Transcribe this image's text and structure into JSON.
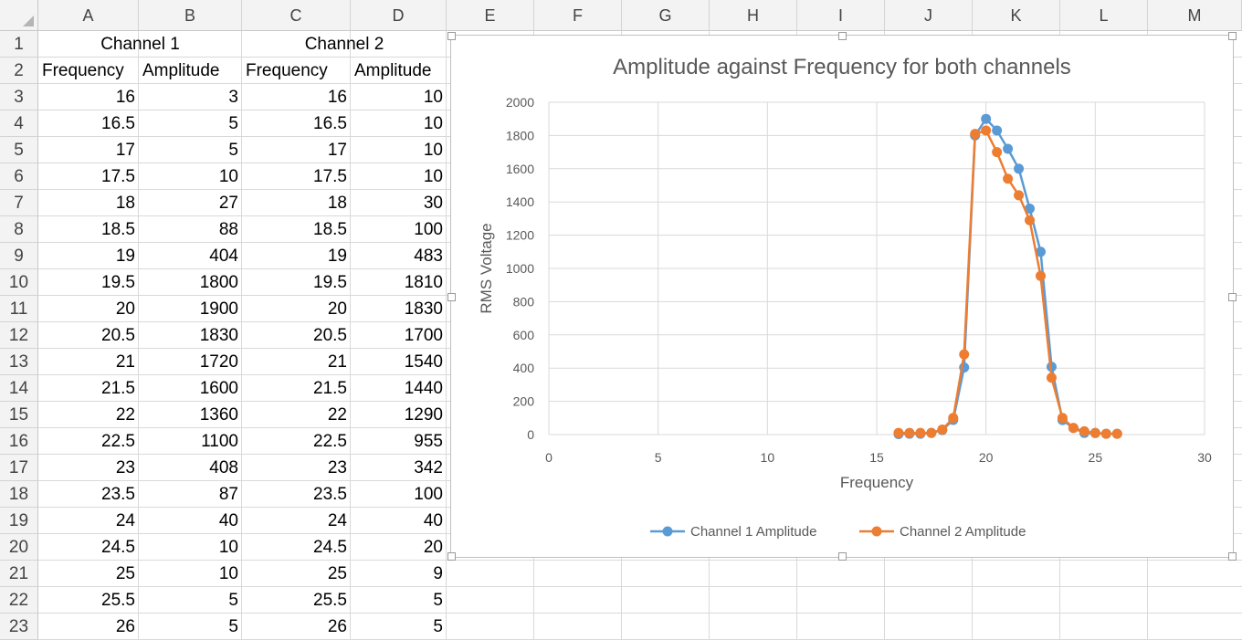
{
  "columns": [
    "A",
    "B",
    "C",
    "D",
    "E",
    "F",
    "G",
    "H",
    "I",
    "J",
    "K",
    "L",
    "M"
  ],
  "row_numbers": [
    "1",
    "2",
    "3",
    "4",
    "5",
    "6",
    "7",
    "8",
    "9",
    "10",
    "11",
    "12",
    "13",
    "14",
    "15",
    "16",
    "17",
    "18",
    "19",
    "20",
    "21",
    "22",
    "23"
  ],
  "headers": {
    "channel1": "Channel 1",
    "channel2": "Channel 2",
    "freq1": "Frequency",
    "amp1": "Amplitude",
    "freq2": "Frequency",
    "amp2": "Amplitude"
  },
  "rows": [
    [
      "16",
      "3",
      "16",
      "10"
    ],
    [
      "16.5",
      "5",
      "16.5",
      "10"
    ],
    [
      "17",
      "5",
      "17",
      "10"
    ],
    [
      "17.5",
      "10",
      "17.5",
      "10"
    ],
    [
      "18",
      "27",
      "18",
      "30"
    ],
    [
      "18.5",
      "88",
      "18.5",
      "100"
    ],
    [
      "19",
      "404",
      "19",
      "483"
    ],
    [
      "19.5",
      "1800",
      "19.5",
      "1810"
    ],
    [
      "20",
      "1900",
      "20",
      "1830"
    ],
    [
      "20.5",
      "1830",
      "20.5",
      "1700"
    ],
    [
      "21",
      "1720",
      "21",
      "1540"
    ],
    [
      "21.5",
      "1600",
      "21.5",
      "1440"
    ],
    [
      "22",
      "1360",
      "22",
      "1290"
    ],
    [
      "22.5",
      "1100",
      "22.5",
      "955"
    ],
    [
      "23",
      "408",
      "23",
      "342"
    ],
    [
      "23.5",
      "87",
      "23.5",
      "100"
    ],
    [
      "24",
      "40",
      "24",
      "40"
    ],
    [
      "24.5",
      "10",
      "24.5",
      "20"
    ],
    [
      "25",
      "10",
      "25",
      "9"
    ],
    [
      "25.5",
      "5",
      "25.5",
      "5"
    ],
    [
      "26",
      "5",
      "26",
      "5"
    ]
  ],
  "chart_data": {
    "type": "line",
    "title": "Amplitude against Frequency for both channels",
    "xlabel": "Frequency",
    "ylabel": "RMS Voltage",
    "xlim": [
      0,
      30
    ],
    "ylim": [
      0,
      2000
    ],
    "x_ticks": [
      "0",
      "5",
      "10",
      "15",
      "20",
      "25",
      "30"
    ],
    "y_ticks": [
      "0",
      "200",
      "400",
      "600",
      "800",
      "1000",
      "1200",
      "1400",
      "1600",
      "1800",
      "2000"
    ],
    "grid": true,
    "legend_position": "bottom",
    "series": [
      {
        "name": "Channel 1 Amplitude",
        "color": "#5b9bd5",
        "x": [
          16,
          16.5,
          17,
          17.5,
          18,
          18.5,
          19,
          19.5,
          20,
          20.5,
          21,
          21.5,
          22,
          22.5,
          23,
          23.5,
          24,
          24.5,
          25,
          25.5,
          26
        ],
        "y": [
          3,
          5,
          5,
          10,
          27,
          88,
          404,
          1800,
          1900,
          1830,
          1720,
          1600,
          1360,
          1100,
          408,
          87,
          40,
          10,
          10,
          5,
          5
        ]
      },
      {
        "name": "Channel 2 Amplitude",
        "color": "#ed7d31",
        "x": [
          16,
          16.5,
          17,
          17.5,
          18,
          18.5,
          19,
          19.5,
          20,
          20.5,
          21,
          21.5,
          22,
          22.5,
          23,
          23.5,
          24,
          24.5,
          25,
          25.5,
          26
        ],
        "y": [
          10,
          10,
          10,
          10,
          30,
          100,
          483,
          1810,
          1830,
          1700,
          1540,
          1440,
          1290,
          955,
          342,
          100,
          40,
          20,
          9,
          5,
          5
        ]
      }
    ]
  }
}
